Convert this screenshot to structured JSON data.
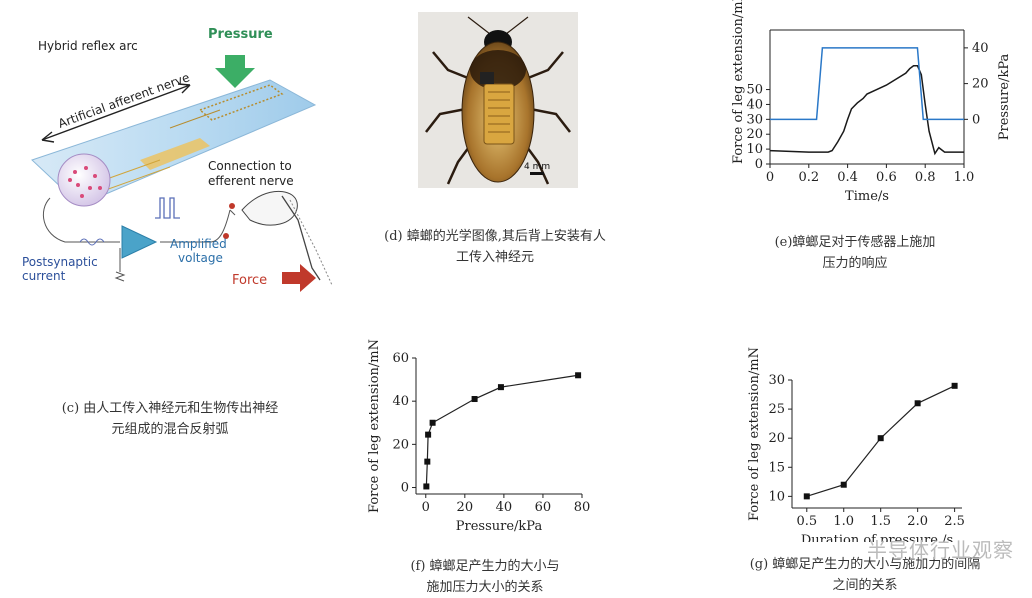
{
  "panel_c": {
    "labels": {
      "title": "Hybrid reflex arc",
      "pressure": "Pressure",
      "afferent": "Artificial afferent nerve",
      "connection": "Connection to\nefferent nerve",
      "amplified": "Amplified\nvoltage",
      "postsynaptic": "Postsynaptic\ncurrent",
      "force": "Force"
    },
    "caption": [
      "(c) 由人工传入神经元和生物传出神经",
      "元组成的混合反射弧"
    ]
  },
  "panel_d": {
    "scale_label": "4 mm",
    "caption": [
      "(d) 蟑螂的光学图像,其后背上安装有人",
      "工传入神经元"
    ]
  },
  "panel_e": {
    "caption": [
      "(e)蟑螂足对于传感器上施加",
      "压力的响应"
    ]
  },
  "panel_f": {
    "caption": [
      "(f) 蟑螂足产生力的大小与",
      "施加压力大小的关系"
    ]
  },
  "panel_g": {
    "caption": [
      "(g) 蟑螂足产生力的大小与施加力的间隔",
      "之间的关系"
    ]
  },
  "watermark": "半导体行业观察",
  "chart_data": [
    {
      "id": "e",
      "type": "line",
      "xlabel": "Time/s",
      "ylabel": "Force of leg extension/mN",
      "y2label": "Pressure/kPa",
      "xlim": [
        0,
        1.0
      ],
      "ylim": [
        0,
        90
      ],
      "y2lim": [
        -25,
        50
      ],
      "xticks": [
        0,
        0.2,
        0.4,
        0.6,
        0.8,
        1.0
      ],
      "xtick_labels": [
        "0",
        "0.2",
        "0.4",
        "0.6",
        "0.8",
        "1.0"
      ],
      "yticks": [
        0,
        10,
        20,
        30,
        40,
        50
      ],
      "ytick_labels": [
        "0",
        "10",
        "20",
        "30",
        "40",
        "50"
      ],
      "y2ticks": [
        0,
        20,
        40
      ],
      "y2tick_labels": [
        "0",
        "20",
        "40"
      ],
      "series": [
        {
          "color": "#1a1a1a",
          "axis": "left",
          "x": [
            0,
            0.1,
            0.2,
            0.3,
            0.32,
            0.35,
            0.38,
            0.4,
            0.42,
            0.45,
            0.48,
            0.5,
            0.55,
            0.6,
            0.65,
            0.7,
            0.72,
            0.74,
            0.76,
            0.78,
            0.8,
            0.82,
            0.85,
            0.87,
            0.9,
            1.0
          ],
          "y": [
            9,
            8.5,
            8,
            8,
            9,
            15,
            22,
            30,
            37,
            41,
            44,
            47,
            50,
            53,
            57,
            61,
            64,
            66,
            66,
            60,
            40,
            22,
            7,
            11,
            8,
            8
          ]
        },
        {
          "color": "#2a78c8",
          "axis": "right",
          "x": [
            0,
            0.24,
            0.27,
            0.76,
            0.79,
            1.0
          ],
          "y": [
            0,
            0,
            40,
            40,
            0,
            0
          ]
        }
      ]
    },
    {
      "id": "f",
      "type": "line",
      "xlabel": "Pressure/kPa",
      "ylabel": "Force of leg extension/mN",
      "xlim": [
        -5,
        80
      ],
      "ylim": [
        -3,
        60
      ],
      "xticks": [
        0,
        20,
        40,
        60,
        80
      ],
      "xtick_labels": [
        "0",
        "20",
        "40",
        "60",
        "80"
      ],
      "yticks": [
        0,
        20,
        40,
        60
      ],
      "ytick_labels": [
        "0",
        "20",
        "40",
        "60"
      ],
      "x": [
        0.3,
        0.8,
        1.2,
        3.5,
        25,
        38.5,
        78
      ],
      "values": [
        0.5,
        12,
        24.5,
        30,
        41,
        46.5,
        52
      ]
    },
    {
      "id": "g",
      "type": "line",
      "xlabel": "Duration of pressure /s",
      "ylabel": "Force of leg extension/mN",
      "xlim": [
        0.3,
        2.6
      ],
      "ylim": [
        8,
        30
      ],
      "xticks": [
        0.5,
        1.0,
        1.5,
        2.0,
        2.5
      ],
      "xtick_labels": [
        "0.5",
        "1.0",
        "1.5",
        "2.0",
        "2.5"
      ],
      "yticks": [
        10,
        15,
        20,
        25,
        30
      ],
      "ytick_labels": [
        "10",
        "15",
        "20",
        "25",
        "30"
      ],
      "x": [
        0.5,
        1.0,
        1.5,
        2.0,
        2.5
      ],
      "values": [
        10,
        12,
        20,
        26,
        29
      ]
    }
  ]
}
